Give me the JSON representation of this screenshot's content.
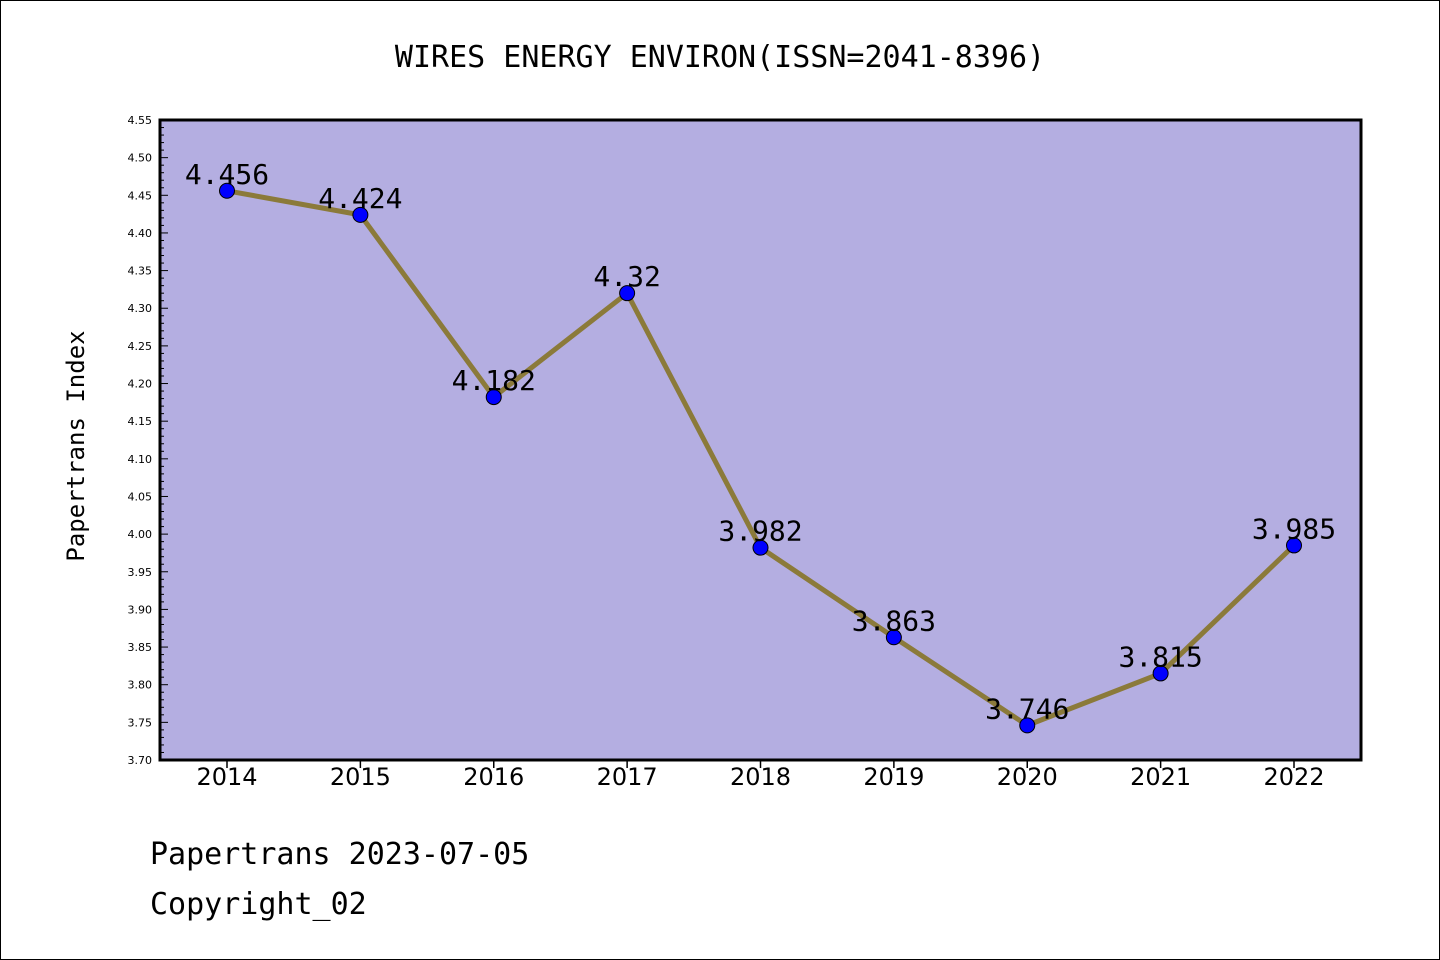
{
  "chart_data": {
    "type": "line",
    "title": "WIRES ENERGY ENVIRON(ISSN=2041-8396)",
    "xlabel": "",
    "ylabel": "Papertrans Index",
    "categories": [
      "2014",
      "2015",
      "2016",
      "2017",
      "2018",
      "2019",
      "2020",
      "2021",
      "2022"
    ],
    "values": [
      4.456,
      4.424,
      4.182,
      4.32,
      3.982,
      3.863,
      3.746,
      3.815,
      3.985
    ],
    "data_labels": [
      "4.456",
      "4.424",
      "4.182",
      "4.32",
      "3.982",
      "3.863",
      "3.746",
      "3.815",
      "3.985"
    ],
    "ylim": [
      3.7,
      4.55
    ],
    "yticks": [
      "3.70",
      "3.75",
      "3.80",
      "3.85",
      "3.90",
      "3.95",
      "4.00",
      "4.05",
      "4.10",
      "4.15",
      "4.20",
      "4.25",
      "4.30",
      "4.35",
      "4.40",
      "4.45",
      "4.50",
      "4.55"
    ],
    "grid": false,
    "colors": {
      "plot_background": "#b4aee1",
      "line": "#8b7a3a",
      "marker": "#0000ff"
    }
  },
  "footer": {
    "line1": "Papertrans 2023-07-05",
    "line2": "Copyright_02"
  }
}
